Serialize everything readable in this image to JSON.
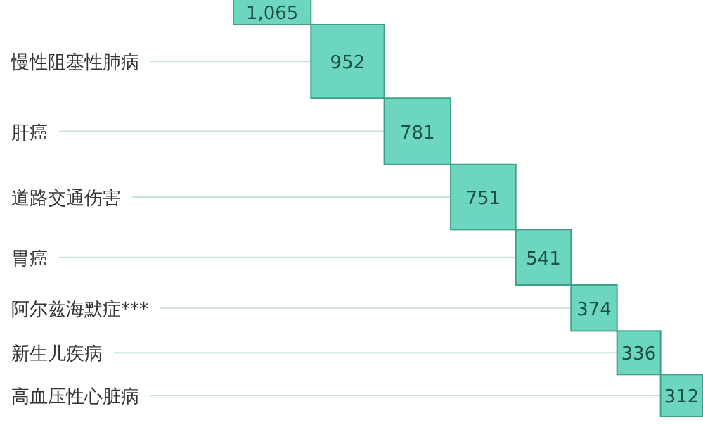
{
  "chart_data": {
    "type": "other",
    "categories": [
      null,
      "慢性阻塞性肺病",
      "肝癌",
      "道路交通伤害",
      "胃癌",
      "阿尔兹海默症***",
      "新生儿疾病",
      "高血压性心脏病"
    ],
    "values": [
      1065,
      952,
      781,
      751,
      541,
      374,
      336,
      312
    ],
    "value_labels": [
      "1,065",
      "952",
      "781",
      "751",
      "541",
      "374",
      "336",
      "312"
    ],
    "color": "#6dd6bf"
  }
}
